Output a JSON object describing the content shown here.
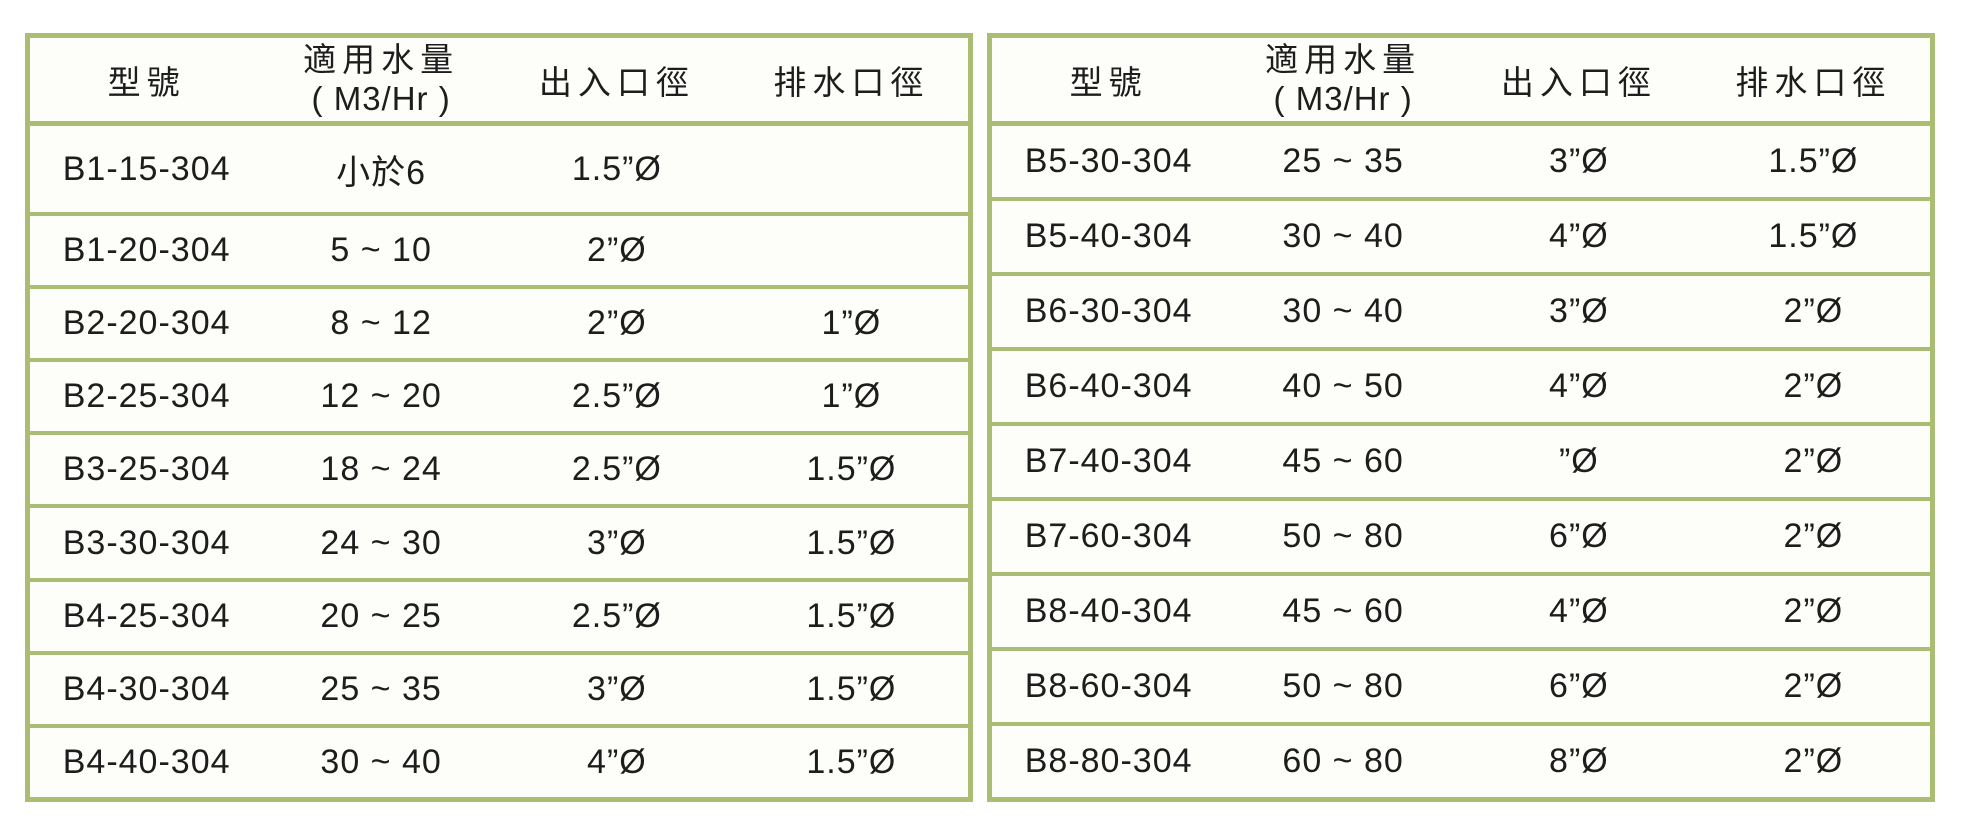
{
  "page": {
    "background": "#ffffff",
    "border_color": "#a9be72",
    "text_color": "#1d1d1d"
  },
  "column_keys": [
    "model",
    "flow-range",
    "inlet-outlet-diameter",
    "drain-diameter"
  ],
  "tables": [
    {
      "name": "left",
      "headers": {
        "model": "型號",
        "flow_line1": "適用水量",
        "flow_line2": "( M3/Hr )",
        "inlet_outlet": "出入口徑",
        "drain": "排水口徑"
      },
      "rows": [
        [
          "B1-15-304",
          "小於6",
          "1.5”Ø",
          ""
        ],
        [
          "B1-20-304",
          "5 ~ 10",
          "2”Ø",
          ""
        ],
        [
          "B2-20-304",
          "8 ~ 12",
          "2”Ø",
          "1”Ø"
        ],
        [
          "B2-25-304",
          "12 ~ 20",
          "2.5”Ø",
          "1”Ø"
        ],
        [
          "B3-25-304",
          "18 ~ 24",
          "2.5”Ø",
          "1.5”Ø"
        ],
        [
          "B3-30-304",
          "24 ~ 30",
          "3”Ø",
          "1.5”Ø"
        ],
        [
          "B4-25-304",
          "20 ~ 25",
          "2.5”Ø",
          "1.5”Ø"
        ],
        [
          "B4-30-304",
          "25 ~ 35",
          "3”Ø",
          "1.5”Ø"
        ],
        [
          "B4-40-304",
          "30 ~ 40",
          "4”Ø",
          "1.5”Ø"
        ]
      ]
    },
    {
      "name": "right",
      "headers": {
        "model": "型號",
        "flow_line1": "適用水量",
        "flow_line2": "( M3/Hr )",
        "inlet_outlet": "出入口徑",
        "drain": "排水口徑"
      },
      "rows": [
        [
          "B5-30-304",
          "25 ~ 35",
          "3”Ø",
          "1.5”Ø"
        ],
        [
          "B5-40-304",
          "30 ~ 40",
          "4”Ø",
          "1.5”Ø"
        ],
        [
          "B6-30-304",
          "30 ~ 40",
          "3”Ø",
          "2”Ø"
        ],
        [
          "B6-40-304",
          "40 ~ 50",
          "4”Ø",
          "2”Ø"
        ],
        [
          "B7-40-304",
          "45 ~ 60",
          "”Ø",
          "2”Ø"
        ],
        [
          "B7-60-304",
          "50 ~ 80",
          "6”Ø",
          "2”Ø"
        ],
        [
          "B8-40-304",
          "45 ~ 60",
          "4”Ø",
          "2”Ø"
        ],
        [
          "B8-60-304",
          "50 ~ 80",
          "6”Ø",
          "2”Ø"
        ],
        [
          "B8-80-304",
          "60 ~ 80",
          "8”Ø",
          "2”Ø"
        ]
      ]
    }
  ]
}
